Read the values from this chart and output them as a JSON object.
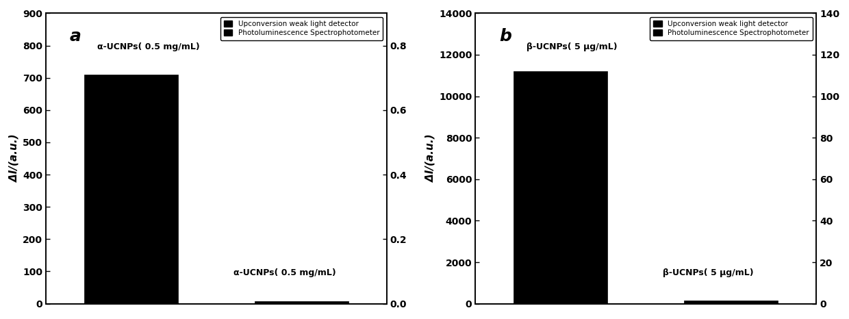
{
  "panel_a": {
    "label": "a",
    "bar1_label": "Upconversion weak light detector",
    "bar2_label": "Photoluminescence Spectrophotometer",
    "bar1_value": 710,
    "bar2_value": 0.007,
    "bar_color": "#000000",
    "yleft_label": "ΔI/(a.u.)",
    "yleft_min": 0,
    "yleft_max": 900,
    "yleft_ticks": [
      0,
      100,
      200,
      300,
      400,
      500,
      600,
      700,
      800,
      900
    ],
    "yright_min": 0.0,
    "yright_max": 0.9,
    "yright_ticks": [
      0.0,
      0.2,
      0.4,
      0.6,
      0.8
    ],
    "annotation_top": "α-UCNPs( 0.5 mg/mL)",
    "annotation_bottom": "α-UCNPs( 0.5 mg/mL)",
    "bar_width": 0.55
  },
  "panel_b": {
    "label": "b",
    "bar1_label": "Upconversion weak light detector",
    "bar2_label": "Photoluminescence Spectrophotometer",
    "bar1_value": 11200,
    "bar2_value": 1.4,
    "bar_color": "#000000",
    "yleft_label": "ΔI/(a.u.)",
    "yleft_min": 0,
    "yleft_max": 14000,
    "yleft_ticks": [
      0,
      2000,
      4000,
      6000,
      8000,
      10000,
      12000,
      14000
    ],
    "yright_min": 0,
    "yright_max": 140,
    "yright_ticks": [
      0,
      20,
      40,
      60,
      80,
      100,
      120,
      140
    ],
    "annotation_top": "β-UCNPs( 5 μg/mL)",
    "annotation_bottom": "β-UCNPs( 5 μg/mL)",
    "bar_width": 0.55
  },
  "figure_bg": "#ffffff",
  "axes_bg": "#ffffff",
  "font_color": "#000000",
  "legend_fontsize": 7.5,
  "axis_label_fontsize": 11,
  "tick_fontsize": 10,
  "panel_label_fontsize": 18
}
